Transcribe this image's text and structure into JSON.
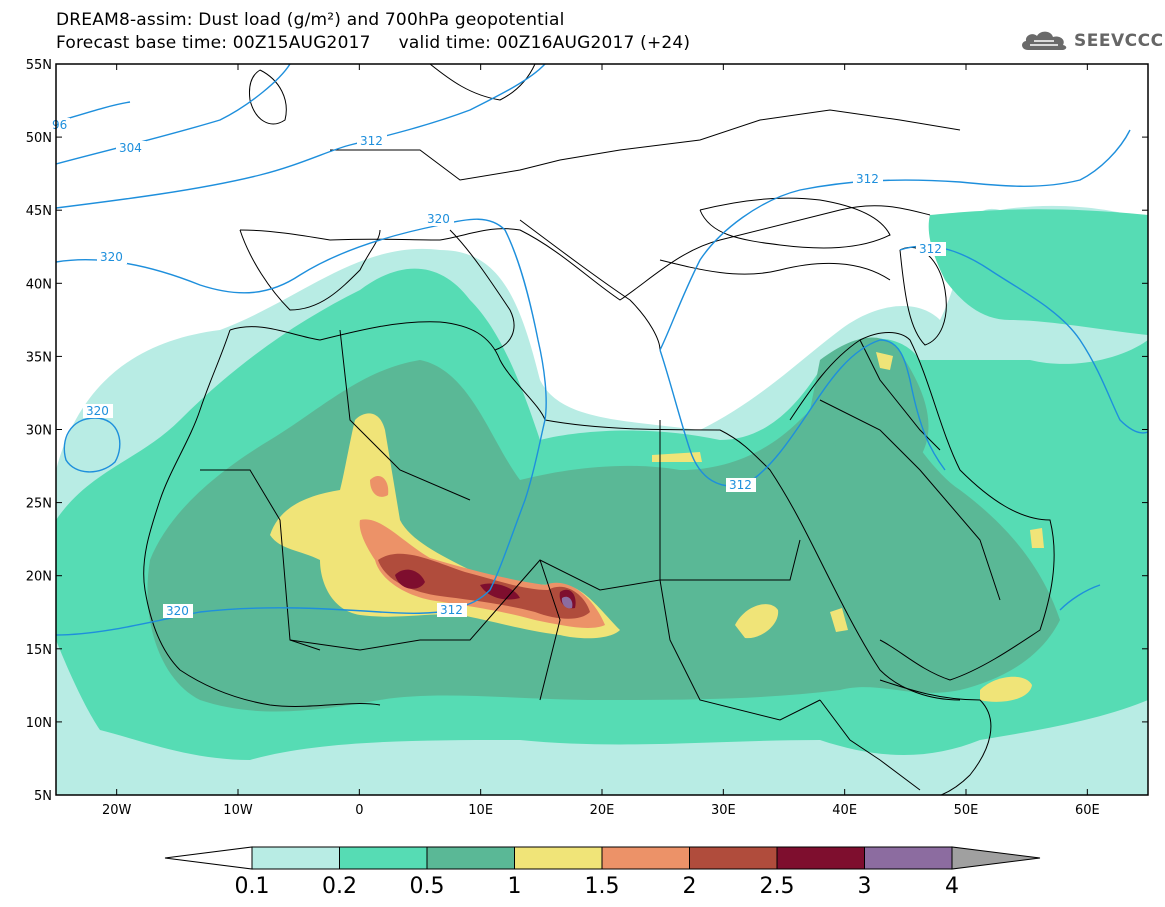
{
  "title": {
    "line1": "DREAM8-assim: Dust load (g/m²) and 700hPa geopotential",
    "line2": "Forecast base time: 00Z15AUG2017     valid time: 00Z16AUG2017 (+24)"
  },
  "logo": {
    "icon": "cloud-icon",
    "text": "SEEVCCC"
  },
  "axes": {
    "lat_labels": [
      "55N",
      "50N",
      "45N",
      "40N",
      "35N",
      "30N",
      "25N",
      "20N",
      "15N",
      "10N",
      "5N"
    ],
    "lat_values": [
      55,
      50,
      45,
      40,
      35,
      30,
      25,
      20,
      15,
      10,
      5
    ],
    "lon_labels": [
      "20W",
      "10W",
      "0",
      "10E",
      "20E",
      "30E",
      "40E",
      "50E",
      "60E"
    ],
    "lon_values": [
      -20,
      -10,
      0,
      10,
      20,
      30,
      40,
      50,
      60
    ],
    "lon_range": [
      -25,
      65
    ],
    "lat_range": [
      5,
      55
    ]
  },
  "colorbar": {
    "labels": [
      "0.1",
      "0.2",
      "0.5",
      "1",
      "1.5",
      "2",
      "2.5",
      "3",
      "4"
    ],
    "colors": [
      "#b8ece4",
      "#56dcb4",
      "#5ab896",
      "#f0e478",
      "#ec9268",
      "#b04c3c",
      "#7e0e2e",
      "#8c6ca0",
      "#a0a0a0"
    ],
    "unit": "g/m²"
  },
  "contours": {
    "color": "#1e8fdc",
    "labels": [
      "96",
      "304",
      "312",
      "320",
      "320",
      "320",
      "320",
      "312",
      "312",
      "312",
      "312"
    ]
  },
  "colors": {
    "border": "#000000",
    "contour": "#1e8fdc"
  }
}
